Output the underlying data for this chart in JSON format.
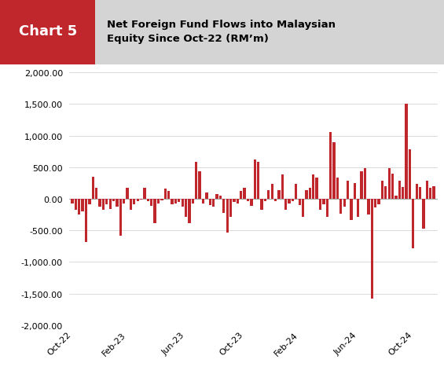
{
  "title_box_label": "Chart 5",
  "title_box_color": "#c0272d",
  "title_text": "Net Foreign Fund Flows into Malaysian\nEquity Since Oct-22 (RM’m)",
  "bar_color": "#c0272d",
  "background_color": "#ffffff",
  "header_bg_color": "#d4d4d4",
  "ylim": [
    -2000,
    2000
  ],
  "ytick_values": [
    -2000,
    -1500,
    -1000,
    -500,
    0,
    500,
    1000,
    1500,
    2000
  ],
  "xtick_labels": [
    "Oct-22",
    "Feb-23",
    "Jun-23",
    "Oct-23",
    "Feb-24",
    "Jun-24",
    "Oct-24"
  ],
  "xtick_positions": [
    0,
    16,
    33,
    50,
    66,
    83,
    99
  ],
  "n_bars": 106,
  "values": [
    -80,
    -180,
    -250,
    -200,
    -680,
    -90,
    350,
    180,
    -130,
    -180,
    -90,
    -160,
    -40,
    -130,
    -580,
    -70,
    180,
    -180,
    -90,
    -40,
    -15,
    180,
    -40,
    -110,
    -380,
    -80,
    -25,
    160,
    120,
    -90,
    -70,
    -50,
    -130,
    -280,
    -380,
    -80,
    580,
    440,
    -80,
    100,
    -100,
    -130,
    80,
    50,
    -220,
    -530,
    -280,
    -50,
    -80,
    120,
    180,
    -40,
    -110,
    620,
    580,
    -180,
    -40,
    140,
    230,
    -40,
    140,
    380,
    -180,
    -80,
    -40,
    240,
    -100,
    -280,
    140,
    180,
    390,
    340,
    -180,
    -90,
    -280,
    1060,
    900,
    340,
    -230,
    -130,
    290,
    -340,
    250,
    -280,
    430,
    490,
    -250,
    -1580,
    -140,
    -90,
    280,
    200,
    480,
    400,
    50,
    280,
    190,
    1500,
    780,
    -780,
    230,
    190,
    -470,
    290,
    180,
    200
  ]
}
